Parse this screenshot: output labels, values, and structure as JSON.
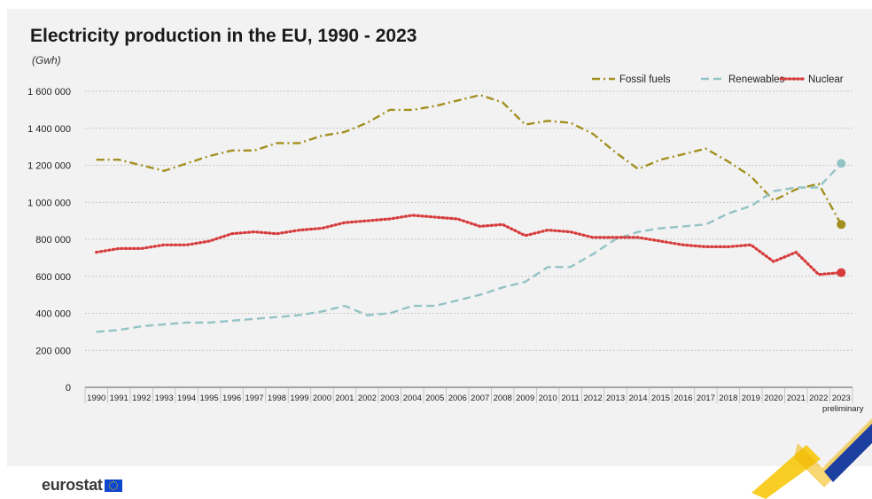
{
  "header": {
    "title": "Electricity production in the EU, 1990 - 2023",
    "unit": "(Gwh)"
  },
  "footer": {
    "brand": "eurostat"
  },
  "colors": {
    "fossil": "#a38f1f",
    "renewables": "#94c3c5",
    "nuclear": "#d63c3c",
    "grid": "#b9b9b9",
    "panel": "#f2f2f2"
  },
  "chart_data": {
    "type": "line",
    "title": "Electricity production in the EU, 1990 - 2023",
    "ylabel": "(Gwh)",
    "ylim": [
      0,
      1600000
    ],
    "yticks": [
      0,
      200000,
      400000,
      600000,
      800000,
      1000000,
      1200000,
      1400000,
      1600000
    ],
    "ytick_labels": [
      "0",
      "200 000",
      "400 000",
      "600 000",
      "800 000",
      "1 000 000",
      "1 200 000",
      "1 400 000",
      "1 600 000"
    ],
    "grid": "horizontal dotted",
    "legend_position": "top-right",
    "x": [
      "1990",
      "1991",
      "1992",
      "1993",
      "1994",
      "1995",
      "1996",
      "1997",
      "1998",
      "1999",
      "2000",
      "2001",
      "2002",
      "2003",
      "2004",
      "2005",
      "2006",
      "2007",
      "2008",
      "2009",
      "2010",
      "2011",
      "2012",
      "2013",
      "2014",
      "2015",
      "2016",
      "2017",
      "2018",
      "2019",
      "2020",
      "2021",
      "2022",
      "2023"
    ],
    "x_annotation": {
      "index": 33,
      "text": "preliminary"
    },
    "series": [
      {
        "name": "Fossil fuels",
        "key": "fossil",
        "style": "dash-dot",
        "values": [
          1230000,
          1230000,
          1200000,
          1170000,
          1210000,
          1250000,
          1280000,
          1280000,
          1320000,
          1320000,
          1360000,
          1380000,
          1430000,
          1500000,
          1500000,
          1520000,
          1550000,
          1580000,
          1540000,
          1420000,
          1440000,
          1430000,
          1370000,
          1270000,
          1180000,
          1230000,
          1260000,
          1290000,
          1220000,
          1140000,
          1010000,
          1070000,
          1100000,
          880000
        ]
      },
      {
        "name": "Renewables",
        "key": "renewables",
        "style": "dash",
        "values": [
          300000,
          310000,
          330000,
          340000,
          350000,
          350000,
          360000,
          370000,
          380000,
          390000,
          410000,
          440000,
          390000,
          400000,
          440000,
          440000,
          470000,
          500000,
          540000,
          570000,
          650000,
          650000,
          720000,
          800000,
          840000,
          860000,
          870000,
          880000,
          940000,
          980000,
          1060000,
          1080000,
          1080000,
          1210000
        ]
      },
      {
        "name": "Nuclear",
        "key": "nuclear",
        "style": "dotted",
        "values": [
          730000,
          750000,
          750000,
          770000,
          770000,
          790000,
          830000,
          840000,
          830000,
          850000,
          860000,
          890000,
          900000,
          910000,
          930000,
          920000,
          910000,
          870000,
          880000,
          820000,
          850000,
          840000,
          810000,
          810000,
          810000,
          790000,
          770000,
          760000,
          760000,
          770000,
          680000,
          730000,
          610000,
          620000
        ]
      }
    ]
  }
}
